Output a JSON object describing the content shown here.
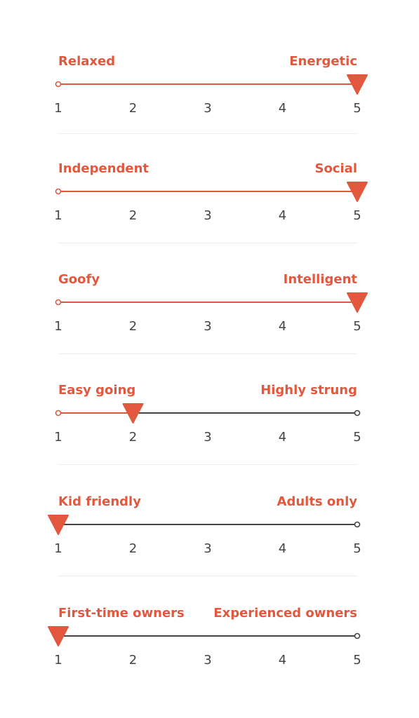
{
  "accent_color": "#e2583e",
  "track_color": "#444444",
  "scale_min": 1,
  "scale_max": 5,
  "tick_labels": [
    "1",
    "2",
    "3",
    "4",
    "5"
  ],
  "traits": [
    {
      "left_label": "Relaxed",
      "right_label": "Energetic",
      "value": 5
    },
    {
      "left_label": "Independent",
      "right_label": "Social",
      "value": 5
    },
    {
      "left_label": "Goofy",
      "right_label": "Intelligent",
      "value": 5
    },
    {
      "left_label": "Easy going",
      "right_label": "Highly strung",
      "value": 2
    },
    {
      "left_label": "Kid friendly",
      "right_label": "Adults only",
      "value": 1
    },
    {
      "left_label": "First-time owners",
      "right_label": "Experienced owners",
      "value": 1
    }
  ]
}
